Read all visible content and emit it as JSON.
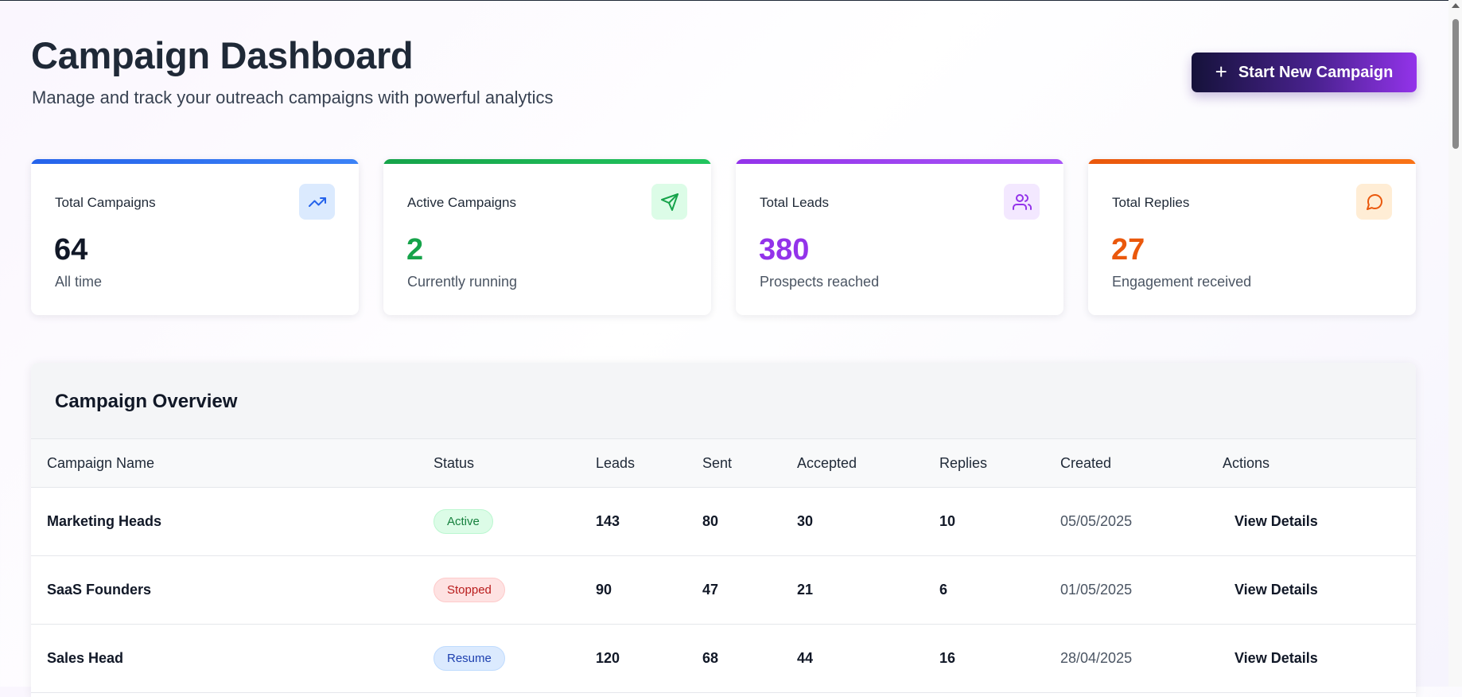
{
  "header": {
    "title": "Campaign Dashboard",
    "subtitle": "Manage and track your outreach campaigns with powerful analytics",
    "new_campaign_button": "Start New Campaign",
    "new_campaign_icon": "plus-icon"
  },
  "stats": [
    {
      "label": "Total Campaigns",
      "value": "64",
      "sub": "All time",
      "icon": "trending-up-icon",
      "accent": "#2563eb",
      "value_color": "#111827",
      "icon_bg": "#dbeafe"
    },
    {
      "label": "Active Campaigns",
      "value": "2",
      "sub": "Currently running",
      "icon": "send-icon",
      "accent": "#16a34a",
      "value_color": "#16a34a",
      "icon_bg": "#dcfce7"
    },
    {
      "label": "Total Leads",
      "value": "380",
      "sub": "Prospects reached",
      "icon": "users-icon",
      "accent": "#9333ea",
      "value_color": "#9333ea",
      "icon_bg": "#f3e8ff"
    },
    {
      "label": "Total Replies",
      "value": "27",
      "sub": "Engagement received",
      "icon": "message-circle-icon",
      "accent": "#ea580c",
      "value_color": "#ea580c",
      "icon_bg": "#ffedd5"
    }
  ],
  "overview": {
    "title": "Campaign Overview",
    "columns": [
      "Campaign Name",
      "Status",
      "Leads",
      "Sent",
      "Accepted",
      "Replies",
      "Created",
      "Actions"
    ],
    "rows": [
      {
        "name": "Marketing Heads",
        "status": "Active",
        "leads": "143",
        "sent": "80",
        "accepted": "30",
        "replies": "10",
        "created": "05/05/2025",
        "action": "View Details"
      },
      {
        "name": "SaaS Founders",
        "status": "Stopped",
        "leads": "90",
        "sent": "47",
        "accepted": "21",
        "replies": "6",
        "created": "01/05/2025",
        "action": "View Details"
      },
      {
        "name": "Sales Head",
        "status": "Resume",
        "leads": "120",
        "sent": "68",
        "accepted": "44",
        "replies": "16",
        "created": "28/04/2025",
        "action": "View Details"
      }
    ],
    "status_styles": {
      "Active": {
        "bg": "#dcfce7",
        "fg": "#15803d",
        "border": "#bbf7d0"
      },
      "Stopped": {
        "bg": "#fee2e2",
        "fg": "#b91c1c",
        "border": "#fecaca"
      },
      "Resume": {
        "bg": "#dbeafe",
        "fg": "#1e40af",
        "border": "#bfdbfe"
      }
    }
  }
}
